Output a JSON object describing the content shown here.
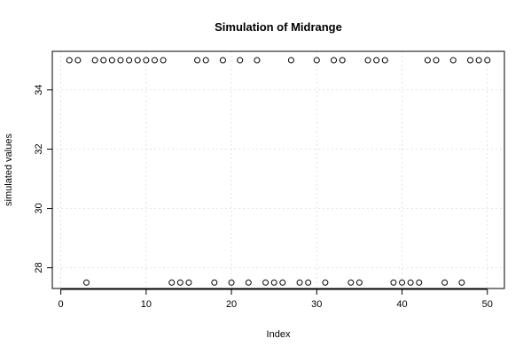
{
  "chart_data": {
    "type": "scatter",
    "title": "Simulation of Midrange",
    "xlabel": "Index",
    "ylabel": "simulated values",
    "xlim": [
      -1,
      52
    ],
    "ylim": [
      27.3,
      35.3
    ],
    "xticks": [
      0,
      10,
      20,
      30,
      40,
      50
    ],
    "yticks": [
      28,
      30,
      32,
      34
    ],
    "grid": true,
    "x": [
      1,
      2,
      3,
      4,
      5,
      6,
      7,
      8,
      9,
      10,
      11,
      12,
      13,
      14,
      15,
      16,
      17,
      18,
      19,
      20,
      21,
      22,
      23,
      24,
      25,
      26,
      27,
      28,
      29,
      30,
      31,
      32,
      33,
      34,
      35,
      36,
      37,
      38,
      39,
      40,
      41,
      42,
      43,
      44,
      45,
      46,
      47,
      48,
      49,
      50
    ],
    "y": [
      35,
      35,
      27.5,
      35,
      35,
      35,
      35,
      35,
      35,
      35,
      35,
      35,
      27.5,
      27.5,
      27.5,
      35,
      35,
      27.5,
      35,
      27.5,
      35,
      27.5,
      35,
      27.5,
      27.5,
      27.5,
      35,
      27.5,
      27.5,
      35,
      27.5,
      35,
      35,
      27.5,
      27.5,
      35,
      35,
      35,
      27.5,
      27.5,
      27.5,
      27.5,
      35,
      35,
      27.5,
      35,
      27.5,
      35,
      35,
      35
    ]
  }
}
